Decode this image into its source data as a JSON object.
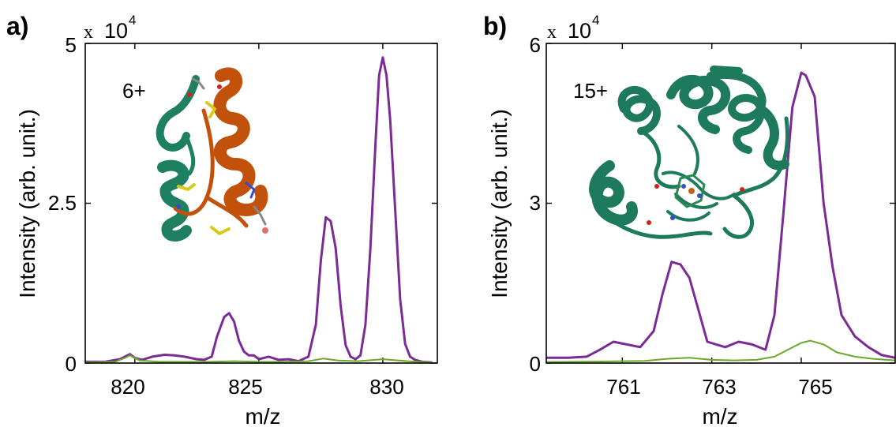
{
  "chart_data": [
    {
      "type": "line",
      "panel_label": "a)",
      "xlabel": "m/z",
      "ylabel": "Intensity (arb. unit.)",
      "y_multiplier": {
        "prefix": "x",
        "base": "10",
        "exponent": "4"
      },
      "xlim": [
        818,
        832.2
      ],
      "ylim": [
        0,
        5
      ],
      "xticks": [
        820,
        825,
        830
      ],
      "yticks": [
        0,
        2.5,
        5
      ],
      "ytick_labels": [
        "0",
        "2.5",
        "5"
      ],
      "annotation": "6+",
      "inset": "protein structure (green and orange ribbon)",
      "series": [
        {
          "color": "#7b2a96",
          "x": [
            818.0,
            818.8,
            819.4,
            819.8,
            820.0,
            820.3,
            820.7,
            821.2,
            821.6,
            822.0,
            822.5,
            822.8,
            823.1,
            823.3,
            823.6,
            823.8,
            824.0,
            824.2,
            824.4,
            824.6,
            824.8,
            825.0,
            825.4,
            825.8,
            826.2,
            826.6,
            827.0,
            827.3,
            827.5,
            827.7,
            827.9,
            828.1,
            828.3,
            828.5,
            828.7,
            828.9,
            829.1,
            829.3,
            829.5,
            829.7,
            829.85,
            830.0,
            830.15,
            830.3,
            830.5,
            830.7,
            830.9,
            831.1,
            831.3,
            831.6,
            832.0
          ],
          "y": [
            0.02,
            0.02,
            0.06,
            0.14,
            0.08,
            0.05,
            0.1,
            0.13,
            0.12,
            0.1,
            0.06,
            0.05,
            0.1,
            0.4,
            0.72,
            0.78,
            0.65,
            0.35,
            0.18,
            0.12,
            0.12,
            0.06,
            0.1,
            0.05,
            0.06,
            0.03,
            0.1,
            0.6,
            1.6,
            2.28,
            2.22,
            1.8,
            0.9,
            0.28,
            0.1,
            0.06,
            0.12,
            0.6,
            1.8,
            3.4,
            4.5,
            4.78,
            4.5,
            3.8,
            2.4,
            1.0,
            0.3,
            0.1,
            0.05,
            0.02,
            0.01
          ]
        },
        {
          "color": "#6aaa2a",
          "x": [
            818.0,
            819.2,
            819.6,
            819.8,
            820.2,
            821.0,
            822.0,
            823.0,
            824.0,
            825.0,
            826.0,
            827.0,
            827.6,
            828.2,
            829.0,
            830.0,
            831.0,
            832.0
          ],
          "y": [
            0.01,
            0.02,
            0.08,
            0.12,
            0.04,
            0.02,
            0.02,
            0.02,
            0.03,
            0.02,
            0.02,
            0.03,
            0.07,
            0.04,
            0.03,
            0.06,
            0.03,
            0.01
          ]
        }
      ]
    },
    {
      "type": "line",
      "panel_label": "b)",
      "xlabel": "m/z",
      "ylabel": "Intensity (arb. unit.)",
      "y_multiplier": {
        "prefix": "x",
        "base": "10",
        "exponent": "4"
      },
      "xlim": [
        759.3,
        767.1
      ],
      "ylim": [
        0,
        6
      ],
      "xticks": [
        761,
        763,
        765
      ],
      "yticks": [
        0,
        3,
        6
      ],
      "ytick_labels": [
        "0",
        "3",
        "6"
      ],
      "annotation": "15+",
      "inset": "protein structure (green ribbon with heme)",
      "series": [
        {
          "color": "#7b2a96",
          "x": [
            759.3,
            759.8,
            760.2,
            760.5,
            760.8,
            761.1,
            761.4,
            761.7,
            761.9,
            762.1,
            762.3,
            762.5,
            762.7,
            762.9,
            763.1,
            763.3,
            763.6,
            763.9,
            764.2,
            764.4,
            764.6,
            764.8,
            765.0,
            765.1,
            765.3,
            765.5,
            765.7,
            765.9,
            766.2,
            766.5,
            766.8,
            767.1
          ],
          "y": [
            0.1,
            0.1,
            0.12,
            0.25,
            0.4,
            0.35,
            0.3,
            0.6,
            1.3,
            1.9,
            1.85,
            1.6,
            1.0,
            0.4,
            0.35,
            0.3,
            0.4,
            0.35,
            0.25,
            0.9,
            2.8,
            4.8,
            5.45,
            5.4,
            5.0,
            3.0,
            1.8,
            0.9,
            0.5,
            0.3,
            0.15,
            0.1
          ]
        },
        {
          "color": "#6aaa2a",
          "x": [
            759.3,
            760.5,
            761.5,
            762.0,
            762.5,
            763.0,
            763.5,
            764.0,
            764.4,
            764.7,
            765.0,
            765.2,
            765.5,
            765.8,
            766.2,
            766.6,
            767.1
          ],
          "y": [
            0.02,
            0.03,
            0.04,
            0.08,
            0.1,
            0.06,
            0.05,
            0.06,
            0.12,
            0.25,
            0.38,
            0.42,
            0.35,
            0.2,
            0.12,
            0.08,
            0.05
          ]
        }
      ]
    }
  ]
}
